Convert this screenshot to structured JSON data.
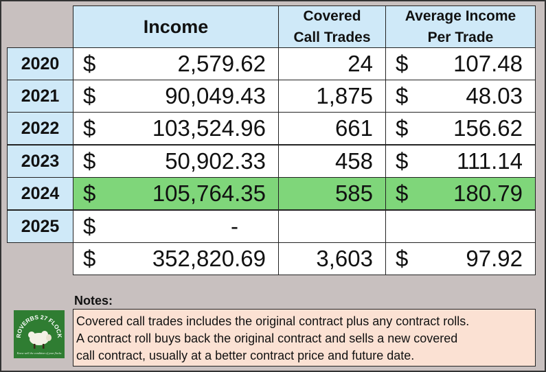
{
  "headers": {
    "income": "Income",
    "trades": "Covered\nCall Trades",
    "trades_line1": "Covered",
    "trades_line2": "Call Trades",
    "avg_line1": "Average Income",
    "avg_line2": "Per Trade"
  },
  "currency_symbol": "$",
  "rows": [
    {
      "year": "2020",
      "income": "2,579.62",
      "trades": "24",
      "avg": "107.48",
      "highlight": false
    },
    {
      "year": "2021",
      "income": "90,049.43",
      "trades": "1,875",
      "avg": "48.03",
      "highlight": false
    },
    {
      "year": "2022",
      "income": "103,524.96",
      "trades": "661",
      "avg": "156.62",
      "highlight": false
    },
    {
      "year": "2023",
      "income": "50,902.33",
      "trades": "458",
      "avg": "111.14",
      "highlight": false
    },
    {
      "year": "2024",
      "income": "105,764.35",
      "trades": "585",
      "avg": "180.79",
      "highlight": true
    },
    {
      "year": "2025",
      "income": "-",
      "trades": "",
      "avg": "",
      "highlight": false
    }
  ],
  "total": {
    "income": "352,820.69",
    "trades": "3,603",
    "avg": "97.92"
  },
  "notes": {
    "title": "Notes:",
    "lines": [
      "Covered call trades includes the original contract plus any contract rolls.",
      "A contract roll buys back the original contract and sells a new covered",
      "call contract, usually at a better contract price and future date."
    ]
  },
  "logo": {
    "text": "PROVERBS 27 FLOCKS",
    "tagline": "Know well the condition of your flocks"
  },
  "colors": {
    "header_bg": "#cfe9f8",
    "highlight_bg": "#7fd67a",
    "notes_bg": "#fbe1d3",
    "logo_bg": "#2f7d32"
  }
}
